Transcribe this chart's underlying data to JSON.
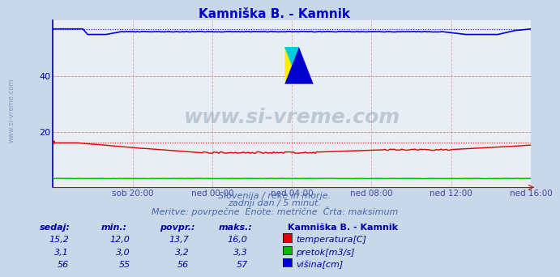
{
  "title": "Kamniška B. - Kamnik",
  "title_color": "#0000cc",
  "bg_color": "#c8d8e8",
  "plot_bg_color": "#e8eef4",
  "grid_color": "#cc8888",
  "grid_color_v": "#ddaaaa",
  "ylabel_color": "#0000aa",
  "xlabel_color": "#4444aa",
  "xlabel_labels": [
    "sob 20:00",
    "ned 00:00",
    "ned 04:00",
    "ned 08:00",
    "ned 12:00",
    "ned 16:00"
  ],
  "ylim": [
    0,
    60
  ],
  "n_points": 289,
  "temp_color": "#dd0000",
  "pretok_color": "#00bb00",
  "visina_color": "#0000dd",
  "temp_sedaj": "15,2",
  "temp_min": "12,0",
  "temp_povpr": "13,7",
  "temp_maks": "16,0",
  "pretok_sedaj": "3,1",
  "pretok_min": "3,0",
  "pretok_povpr": "3,2",
  "pretok_maks": "3,3",
  "visina_sedaj": "56",
  "visina_min": "55",
  "visina_povpr": "56",
  "visina_maks": "57",
  "watermark": "www.si-vreme.com",
  "subtitle1": "Slovenija / reke in morje.",
  "subtitle2": "zadnji dan / 5 minut.",
  "subtitle3": "Meritve: povrpečne  Enote: metrične  Črta: maksimum",
  "legend_title": "Kamniška B. - Kamnik",
  "legend_items": [
    "temperatura[C]",
    "pretok[m3/s]",
    "višina[cm]"
  ],
  "legend_colors": [
    "#dd0000",
    "#00bb00",
    "#0000dd"
  ],
  "table_headers": [
    "sedaj:",
    "min.:",
    "povpr.:",
    "maks.:"
  ],
  "table_color": "#0000aa",
  "side_text": "www.si-vreme.com",
  "side_text_color": "#8899bb"
}
